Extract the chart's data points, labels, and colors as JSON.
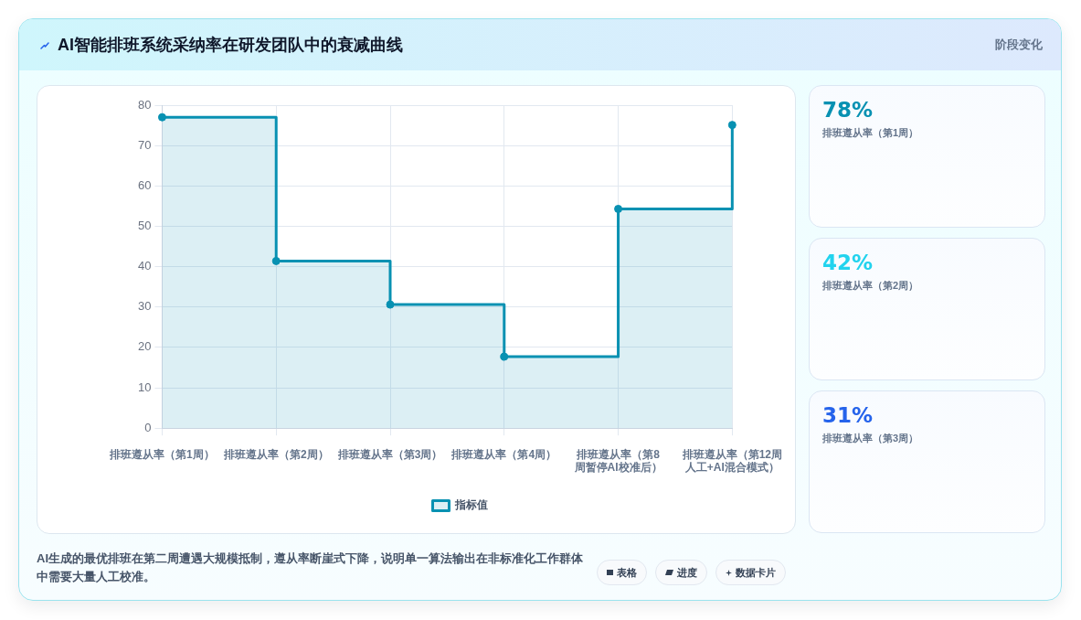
{
  "chart_data": [
    {
      "type": "step",
      "title": "AI智能排班系统采纳率在研发团队中的衰减曲线",
      "categories": [
        "排班遵从率（第1周）",
        "排班遵从率（第2周）",
        "排班遵从率（第3周）",
        "排班遵从率（第4周）",
        "排班遵从率（第8周暂停AI校准后）",
        "排班遵从率（第12周人工+AI混合模式）"
      ],
      "series": [
        {
          "name": "指标值",
          "type": "step",
          "color": "#0891b2",
          "values": [
            77,
            41.4,
            30.6,
            17.7,
            54.3,
            75.1
          ]
        },
        {
          "type": "area",
          "color": "#0891b2",
          "marker": "none",
          "values": [
            77,
            41.4,
            30.6,
            17.7,
            54.3,
            75.1
          ]
        }
      ],
      "ylim": [
        0,
        80
      ],
      "yticks": [
        0,
        10,
        20,
        30,
        40,
        50,
        60,
        70,
        80
      ],
      "grid": true,
      "legend": "bottom",
      "marker": "circle",
      "line_style": "solid",
      "annotations": [
        "AI生成的最优排班在第二周遭遇大规模抵制，遵从率断崖式下降，说明单一算法输出在非标准化工作群体中需要大量人工校准。",
        "表格",
        "进度",
        "数据卡片"
      ]
    },
    {
      "type": "other",
      "title": "阶段变化",
      "categories": [
        "排班遵从率（第1周）",
        "排班遵从率（第2周）",
        "排班遵从率（第3周）"
      ],
      "value_labels": [
        "78%",
        "42%",
        "31%"
      ]
    }
  ]
}
